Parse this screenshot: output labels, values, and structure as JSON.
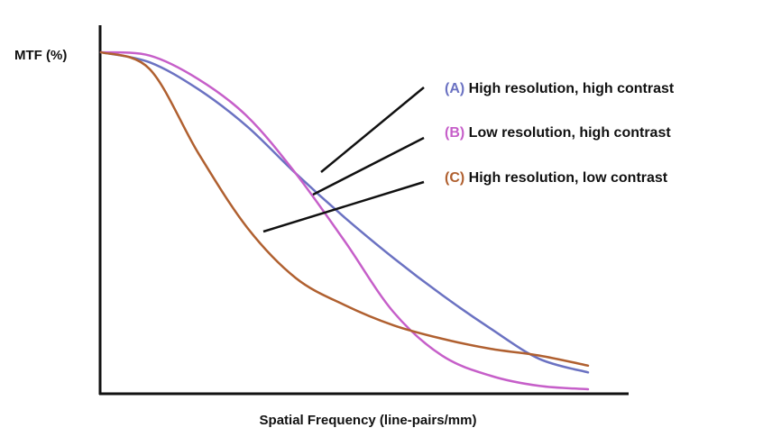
{
  "chart_data": {
    "type": "line",
    "title": "",
    "xlabel": "Spatial Frequency (line-pairs/mm)",
    "ylabel": "MTF (%)",
    "grid": false,
    "ticks_shown": false,
    "legend_position": "top-right",
    "xlim": [
      0,
      100
    ],
    "ylim": [
      0,
      100
    ],
    "series": [
      {
        "id": "A",
        "letter": "(A)",
        "name": "High resolution, high contrast",
        "color": "#6b72c2",
        "x": [
          0,
          10,
          20,
          30,
          40,
          50,
          60,
          70,
          80,
          90,
          100
        ],
        "y": [
          100,
          97,
          89,
          78,
          64,
          51,
          39,
          28,
          18,
          9,
          5
        ]
      },
      {
        "id": "B",
        "letter": "(B)",
        "name": "Low resolution, high contrast",
        "color": "#c65fc9",
        "x": [
          0,
          10,
          20,
          30,
          40,
          50,
          60,
          70,
          80,
          90,
          100
        ],
        "y": [
          100,
          99,
          92,
          81,
          64,
          44,
          23,
          10,
          4,
          1,
          0
        ]
      },
      {
        "id": "C",
        "letter": "(C)",
        "name": "High resolution, low contrast",
        "color": "#b06030",
        "x": [
          0,
          10,
          20,
          30,
          40,
          50,
          60,
          70,
          80,
          90,
          100
        ],
        "y": [
          100,
          95,
          70,
          48,
          33,
          25,
          19,
          15,
          12,
          10,
          7
        ]
      }
    ]
  }
}
